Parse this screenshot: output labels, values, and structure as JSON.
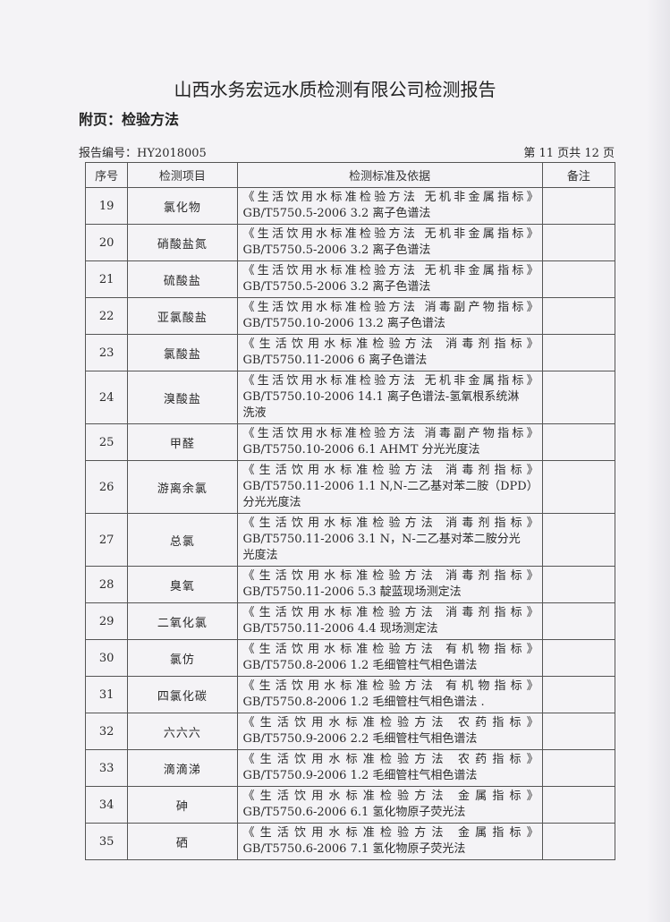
{
  "header": {
    "title": "山西水务宏远水质检测有限公司检测报告",
    "subtitle": "附页：检验方法",
    "report_no": "报告编号：HY2018005",
    "page": "第 11 页共 12 页"
  },
  "table": {
    "columns": [
      "序号",
      "检测项目",
      "检测标准及依据",
      "备注"
    ],
    "rows": [
      {
        "no": "19",
        "item": "氯化物",
        "lines": [
          "《生活饮用水标准检验方法 无机非金属指标》",
          "GB/T5750.5-2006  3.2 离子色谱法"
        ],
        "note": ""
      },
      {
        "no": "20",
        "item": "硝酸盐氮",
        "lines": [
          "《生活饮用水标准检验方法 无机非金属指标》",
          "GB/T5750.5-2006  3.2 离子色谱法"
        ],
        "note": ""
      },
      {
        "no": "21",
        "item": "硫酸盐",
        "lines": [
          "《生活饮用水标准检验方法 无机非金属指标》",
          "GB/T5750.5-2006  3.2 离子色谱法"
        ],
        "note": ""
      },
      {
        "no": "22",
        "item": "亚氯酸盐",
        "lines": [
          "《生活饮用水标准检验方法 消毒副产物指标》",
          "GB/T5750.10-2006 13.2 离子色谱法"
        ],
        "note": ""
      },
      {
        "no": "23",
        "item": "氯酸盐",
        "lines": [
          "《生活饮用水标准检验方法  消毒剂指标》",
          "GB/T5750.11-2006 6 离子色谱法"
        ],
        "note": ""
      },
      {
        "no": "24",
        "item": "溴酸盐",
        "lines": [
          "《生活饮用水标准检验方法 无机非金属指标》",
          "GB/T5750.10-2006 14.1 离子色谱法-氢氧根系统淋",
          "洗液"
        ],
        "note": ""
      },
      {
        "no": "25",
        "item": "甲醛",
        "lines": [
          "《生活饮用水标准检验方法 消毒副产物指标》",
          "GB/T5750.10-2006 6.1 AHMT 分光光度法"
        ],
        "note": ""
      },
      {
        "no": "26",
        "item": "游离余氯",
        "lines": [
          "《生活饮用水标准检验方法  消毒剂指标》",
          "GB/T5750.11-2006 1.1 N,N-二乙基对苯二胺（DPD）",
          "分光光度法"
        ],
        "note": ""
      },
      {
        "no": "27",
        "item": "总氯",
        "lines": [
          "《生活饮用水标准检验方法  消毒剂指标》",
          "GB/T5750.11-2006 3.1 N，N-二乙基对苯二胺分光",
          "光度法"
        ],
        "note": ""
      },
      {
        "no": "28",
        "item": "臭氧",
        "lines": [
          "《生活饮用水标准检验方法  消毒剂指标》",
          "GB/T5750.11-2006 5.3 靛蓝现场测定法"
        ],
        "note": ""
      },
      {
        "no": "29",
        "item": "二氧化氯",
        "lines": [
          "《生活饮用水标准检验方法  消毒剂指标》",
          "GB/T5750.11-2006 4.4 现场测定法"
        ],
        "note": ""
      },
      {
        "no": "30",
        "item": "氯仿",
        "lines": [
          "《生活饮用水标准检验方法  有机物指标》",
          "GB/T5750.8-2006  1.2 毛细管柱气相色谱法"
        ],
        "note": ""
      },
      {
        "no": "31",
        "item": "四氯化碳",
        "lines": [
          "《生活饮用水标准检验方法  有机物指标》",
          "GB/T5750.8-2006  1.2 毛细管柱气相色谱法  ."
        ],
        "note": ""
      },
      {
        "no": "32",
        "item": "六六六",
        "lines": [
          "《生活饮用水标准检验方法  农药指标》",
          "GB/T5750.9-2006  2.2 毛细管柱气相色谱法"
        ],
        "note": ""
      },
      {
        "no": "33",
        "item": "滴滴涕",
        "lines": [
          "《生活饮用水标准检验方法  农药指标》",
          "GB/T5750.9-2006  1.2 毛细管柱气相色谱法"
        ],
        "note": ""
      },
      {
        "no": "34",
        "item": "砷",
        "lines": [
          "《生活饮用水标准检验方法  金属指标》",
          "GB/T5750.6-2006  6.1 氢化物原子荧光法"
        ],
        "note": ""
      },
      {
        "no": "35",
        "item": "硒",
        "lines": [
          "《生活饮用水标准检验方法  金属指标》",
          "GB/T5750.6-2006  7.1 氢化物原子荧光法"
        ],
        "note": ""
      }
    ]
  }
}
